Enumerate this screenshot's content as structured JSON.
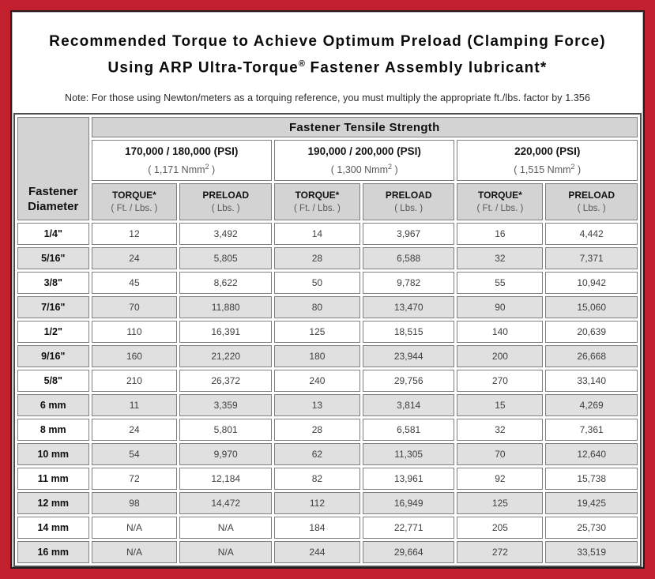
{
  "title": {
    "line1": "Recommended Torque to Achieve Optimum Preload (Clamping Force)",
    "line2_pre": "Using ARP Ultra-Torque",
    "line2_reg": "®",
    "line2_post": " Fastener Assembly lubricant*",
    "note": "Note: For those using Newton/meters as a torquing reference, you must multiply the appropriate ft./lbs. factor by 1.356"
  },
  "table": {
    "corner_header": "Fastener Diameter",
    "group_header": "Fastener Tensile Strength",
    "strength_groups": [
      {
        "psi": "170,000 / 180,000 (PSI)",
        "nmm_pre": "( 1,171 Nmm",
        "nmm_sup": "2",
        "nmm_post": " )"
      },
      {
        "psi": "190,000 / 200,000 (PSI)",
        "nmm_pre": "( 1,300 Nmm",
        "nmm_sup": "2",
        "nmm_post": " )"
      },
      {
        "psi": "220,000 (PSI)",
        "nmm_pre": "( 1,515 Nmm",
        "nmm_sup": "2",
        "nmm_post": " )"
      }
    ],
    "sub_headers": {
      "torque_label": "TORQUE*",
      "torque_unit": "( Ft. / Lbs. )",
      "preload_label": "PRELOAD",
      "preload_unit": "( Lbs. )"
    },
    "rows": [
      {
        "diameter": "1/4\"",
        "values": [
          "12",
          "3,492",
          "14",
          "3,967",
          "16",
          "4,442"
        ]
      },
      {
        "diameter": "5/16\"",
        "values": [
          "24",
          "5,805",
          "28",
          "6,588",
          "32",
          "7,371"
        ]
      },
      {
        "diameter": "3/8\"",
        "values": [
          "45",
          "8,622",
          "50",
          "9,782",
          "55",
          "10,942"
        ]
      },
      {
        "diameter": "7/16\"",
        "values": [
          "70",
          "11,880",
          "80",
          "13,470",
          "90",
          "15,060"
        ]
      },
      {
        "diameter": "1/2\"",
        "values": [
          "110",
          "16,391",
          "125",
          "18,515",
          "140",
          "20,639"
        ]
      },
      {
        "diameter": "9/16\"",
        "values": [
          "160",
          "21,220",
          "180",
          "23,944",
          "200",
          "26,668"
        ]
      },
      {
        "diameter": "5/8\"",
        "values": [
          "210",
          "26,372",
          "240",
          "29,756",
          "270",
          "33,140"
        ]
      },
      {
        "diameter": "6 mm",
        "values": [
          "11",
          "3,359",
          "13",
          "3,814",
          "15",
          "4,269"
        ]
      },
      {
        "diameter": "8 mm",
        "values": [
          "24",
          "5,801",
          "28",
          "6,581",
          "32",
          "7,361"
        ]
      },
      {
        "diameter": "10 mm",
        "values": [
          "54",
          "9,970",
          "62",
          "11,305",
          "70",
          "12,640"
        ]
      },
      {
        "diameter": "11 mm",
        "values": [
          "72",
          "12,184",
          "82",
          "13,961",
          "92",
          "15,738"
        ]
      },
      {
        "diameter": "12 mm",
        "values": [
          "98",
          "14,472",
          "112",
          "16,949",
          "125",
          "19,425"
        ]
      },
      {
        "diameter": "14 mm",
        "values": [
          "N/A",
          "N/A",
          "184",
          "22,771",
          "205",
          "25,730"
        ]
      },
      {
        "diameter": "16 mm",
        "values": [
          "N/A",
          "N/A",
          "244",
          "29,664",
          "272",
          "33,519"
        ]
      }
    ]
  },
  "colors": {
    "frame_red": "#c2202e",
    "frame_line": "#231f20",
    "header_gray": "#d3d3d3",
    "row_alt_gray": "#e0e0e0",
    "cell_border": "#7f7f7f",
    "table_border": "#4f4f4f"
  }
}
